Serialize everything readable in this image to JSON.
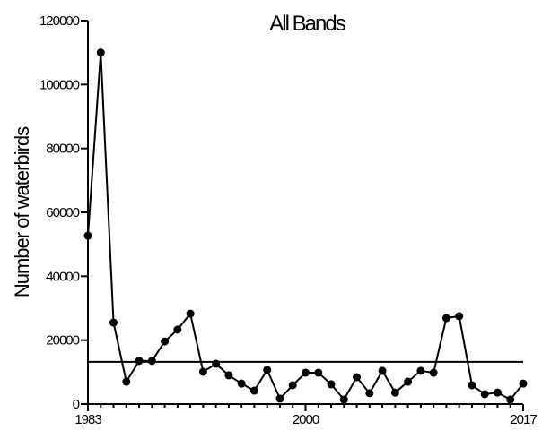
{
  "chart_data": {
    "type": "line",
    "title": "All Bands",
    "y_label": "Number of waterbirds",
    "x": [
      1983,
      1984,
      1985,
      1986,
      1987,
      1988,
      1989,
      1990,
      1991,
      1992,
      1993,
      1994,
      1995,
      1996,
      1997,
      1998,
      1999,
      2000,
      2001,
      2002,
      2003,
      2004,
      2005,
      2006,
      2007,
      2008,
      2009,
      2010,
      2011,
      2012,
      2013,
      2014,
      2015,
      2016,
      2017
    ],
    "series": [
      {
        "color": "#000000",
        "values": [
          52700,
          110000,
          25500,
          7000,
          13500,
          13500,
          19600,
          23300,
          28300,
          10100,
          12600,
          9000,
          6400,
          4200,
          10700,
          1700,
          5900,
          9800,
          9800,
          6200,
          1400,
          8400,
          3400,
          10400,
          3600,
          7000,
          10400,
          9800,
          26900,
          27500,
          5900,
          3100,
          3600,
          1400,
          6400
        ]
      }
    ],
    "reference_line": 13200,
    "xlim": [
      1983,
      2017
    ],
    "xticks": [
      1983,
      2000,
      2017
    ],
    "ylim": [
      0,
      120000
    ],
    "yticks": [
      0,
      20000,
      40000,
      60000,
      80000,
      100000,
      120000
    ]
  }
}
